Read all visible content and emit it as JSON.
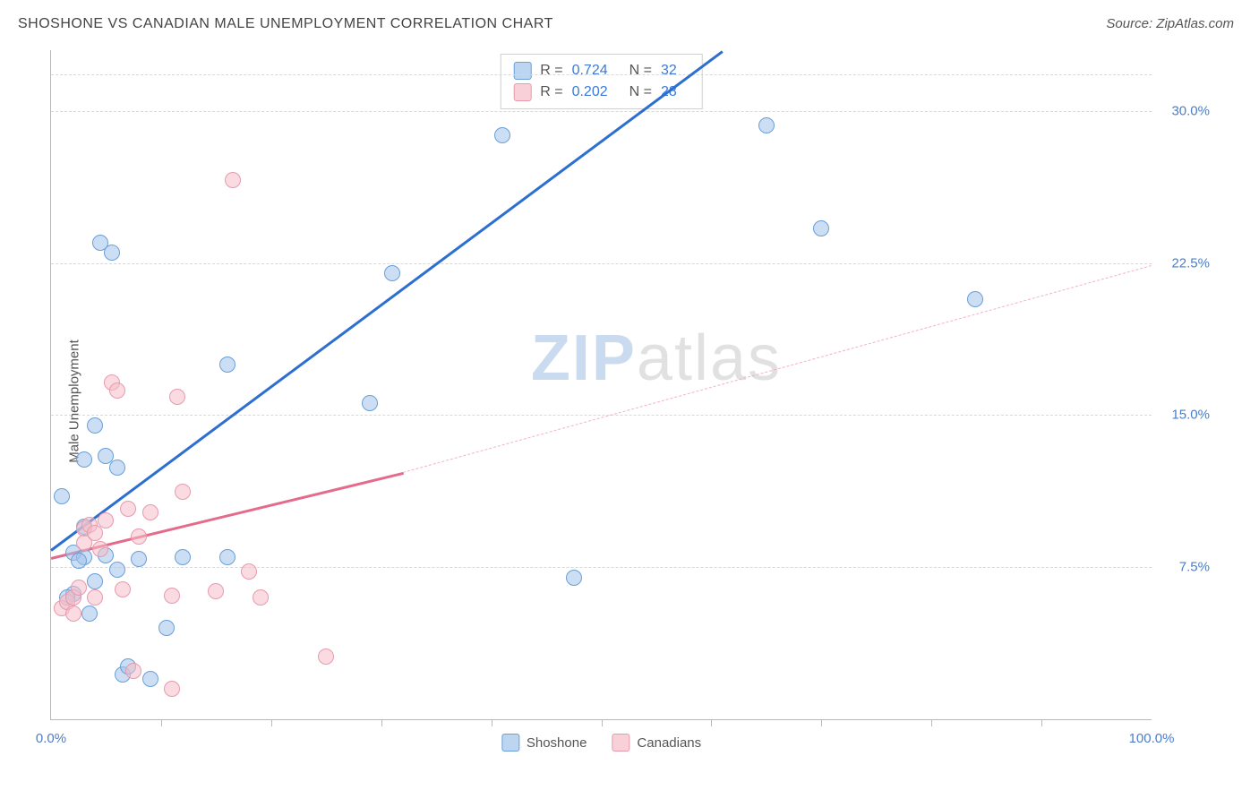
{
  "header": {
    "title": "SHOSHONE VS CANADIAN MALE UNEMPLOYMENT CORRELATION CHART",
    "source_prefix": "Source: ",
    "source_name": "ZipAtlas.com"
  },
  "watermark": {
    "part1": "ZIP",
    "part2": "atlas"
  },
  "chart": {
    "type": "scatter",
    "ylabel": "Male Unemployment",
    "x_domain": [
      0,
      100
    ],
    "y_domain": [
      0,
      33
    ],
    "background_color": "#ffffff",
    "grid_color": "#d8d8d8",
    "axis_color": "#b8b8b8",
    "tick_label_color": "#4a7ec9",
    "y_ticks": [
      {
        "value": 7.5,
        "label": "7.5%"
      },
      {
        "value": 15.0,
        "label": "15.0%"
      },
      {
        "value": 22.5,
        "label": "22.5%"
      },
      {
        "value": 30.0,
        "label": "30.0%"
      }
    ],
    "y_top_grid_value": 31.8,
    "x_ticks_minor": [
      10,
      20,
      30,
      40,
      50,
      60,
      70,
      80,
      90
    ],
    "x_ticks_labeled": [
      {
        "value": 0,
        "label": "0.0%"
      },
      {
        "value": 100,
        "label": "100.0%"
      }
    ],
    "series": [
      {
        "name": "Shoshone",
        "color_fill": "rgba(160,195,235,0.55)",
        "color_stroke": "#6a9fd8",
        "marker_size": 18,
        "r_value": "0.724",
        "n_value": "32",
        "regression": {
          "solid": {
            "x1": 0,
            "y1": 8.4,
            "x2": 61,
            "y2": 33,
            "color": "#2d6fd0",
            "width": 3
          }
        },
        "points": [
          {
            "x": 1,
            "y": 11.0
          },
          {
            "x": 2,
            "y": 8.2
          },
          {
            "x": 3,
            "y": 8.0
          },
          {
            "x": 3,
            "y": 12.8
          },
          {
            "x": 4.5,
            "y": 23.5
          },
          {
            "x": 5.5,
            "y": 23.0
          },
          {
            "x": 4,
            "y": 14.5
          },
          {
            "x": 5,
            "y": 8.1
          },
          {
            "x": 6,
            "y": 12.4
          },
          {
            "x": 6,
            "y": 7.4
          },
          {
            "x": 6.5,
            "y": 2.2
          },
          {
            "x": 7,
            "y": 2.6
          },
          {
            "x": 8,
            "y": 7.9
          },
          {
            "x": 9,
            "y": 2.0
          },
          {
            "x": 10.5,
            "y": 4.5
          },
          {
            "x": 12,
            "y": 8.0
          },
          {
            "x": 16,
            "y": 17.5
          },
          {
            "x": 16,
            "y": 8.0
          },
          {
            "x": 29,
            "y": 15.6
          },
          {
            "x": 31,
            "y": 22.0
          },
          {
            "x": 41,
            "y": 28.8
          },
          {
            "x": 47.5,
            "y": 7.0
          },
          {
            "x": 65,
            "y": 29.3
          },
          {
            "x": 70,
            "y": 24.2
          },
          {
            "x": 84,
            "y": 20.7
          },
          {
            "x": 2,
            "y": 6.2
          },
          {
            "x": 3.5,
            "y": 5.2
          },
          {
            "x": 1.5,
            "y": 6.0
          },
          {
            "x": 4,
            "y": 6.8
          },
          {
            "x": 5,
            "y": 13.0
          },
          {
            "x": 2.5,
            "y": 7.8
          },
          {
            "x": 3,
            "y": 9.5
          }
        ]
      },
      {
        "name": "Canadians",
        "color_fill": "rgba(245,190,200,0.55)",
        "color_stroke": "#e79aad",
        "marker_size": 18,
        "r_value": "0.202",
        "n_value": "28",
        "regression": {
          "solid": {
            "x1": 0,
            "y1": 8.0,
            "x2": 32,
            "y2": 12.2,
            "color": "#e46b8a",
            "width": 3
          },
          "dashed": {
            "x1": 32,
            "y1": 12.2,
            "x2": 100,
            "y2": 22.4,
            "color": "#f2b3c2",
            "width": 1.5
          }
        },
        "points": [
          {
            "x": 1,
            "y": 5.5
          },
          {
            "x": 1.5,
            "y": 5.8
          },
          {
            "x": 2,
            "y": 6.0
          },
          {
            "x": 2,
            "y": 5.2
          },
          {
            "x": 2.5,
            "y": 6.5
          },
          {
            "x": 3,
            "y": 9.4
          },
          {
            "x": 3,
            "y": 8.7
          },
          {
            "x": 3.5,
            "y": 9.6
          },
          {
            "x": 4,
            "y": 9.2
          },
          {
            "x": 4,
            "y": 6.0
          },
          {
            "x": 4.5,
            "y": 8.4
          },
          {
            "x": 5,
            "y": 9.8
          },
          {
            "x": 5.5,
            "y": 16.6
          },
          {
            "x": 6,
            "y": 16.2
          },
          {
            "x": 6.5,
            "y": 6.4
          },
          {
            "x": 7,
            "y": 10.4
          },
          {
            "x": 7.5,
            "y": 2.4
          },
          {
            "x": 8,
            "y": 9.0
          },
          {
            "x": 9,
            "y": 10.2
          },
          {
            "x": 11,
            "y": 1.5
          },
          {
            "x": 11.5,
            "y": 15.9
          },
          {
            "x": 12,
            "y": 11.2
          },
          {
            "x": 15,
            "y": 6.3
          },
          {
            "x": 16.5,
            "y": 26.6
          },
          {
            "x": 18,
            "y": 7.3
          },
          {
            "x": 19,
            "y": 6.0
          },
          {
            "x": 25,
            "y": 3.1
          },
          {
            "x": 11,
            "y": 6.1
          }
        ]
      }
    ],
    "legend_top": {
      "r_label": "R =",
      "n_label": "N ="
    },
    "legend_bottom": [
      {
        "swatch": "blue",
        "label": "Shoshone"
      },
      {
        "swatch": "pink",
        "label": "Canadians"
      }
    ]
  }
}
